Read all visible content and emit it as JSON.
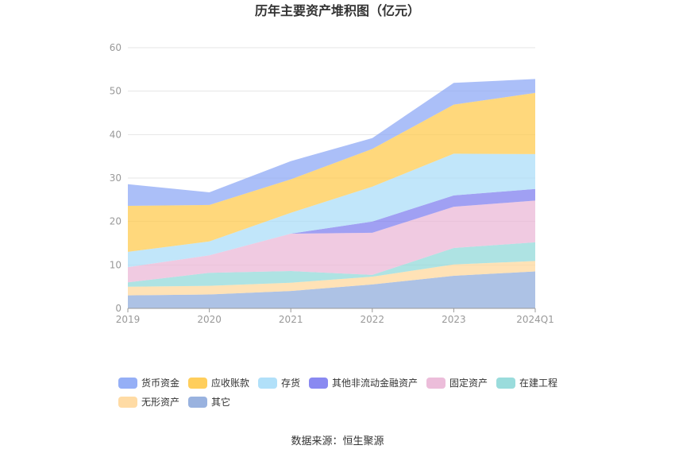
{
  "chart_data": {
    "type": "area",
    "stacked": true,
    "title": "历年主要资产堆积图（亿元）",
    "categories": [
      "2019",
      "2020",
      "2021",
      "2022",
      "2023",
      "2024Q1"
    ],
    "ylim": [
      0,
      60
    ],
    "yticks": [
      0,
      10,
      20,
      30,
      40,
      50,
      60
    ],
    "grid": true,
    "legend_position": "bottom",
    "series": [
      {
        "name": "其它",
        "color": "#8eaadb",
        "values": [
          3.0,
          3.2,
          4.0,
          5.5,
          7.5,
          8.5
        ]
      },
      {
        "name": "无形资产",
        "color": "#ffd79a",
        "values": [
          2.0,
          2.0,
          1.9,
          1.8,
          2.6,
          2.4
        ]
      },
      {
        "name": "在建工程",
        "color": "#8fd8d8",
        "values": [
          1.0,
          3.0,
          2.7,
          0.4,
          3.8,
          4.3
        ]
      },
      {
        "name": "固定资产",
        "color": "#eab6d6",
        "values": [
          3.5,
          4.0,
          8.6,
          9.7,
          9.5,
          9.6
        ]
      },
      {
        "name": "其他非流动金融资产",
        "color": "#7c7cef",
        "values": [
          0.0,
          0.0,
          0.0,
          2.6,
          2.6,
          2.7
        ]
      },
      {
        "name": "存货",
        "color": "#a9ddf8",
        "values": [
          3.5,
          3.2,
          4.8,
          8.0,
          9.6,
          8.0
        ]
      },
      {
        "name": "应收账款",
        "color": "#ffc94a",
        "values": [
          10.6,
          8.4,
          7.7,
          8.7,
          11.3,
          14.1
        ]
      },
      {
        "name": "货币资金",
        "color": "#8aa6f5",
        "values": [
          5.0,
          2.9,
          4.2,
          2.5,
          5.0,
          3.2
        ]
      }
    ],
    "legend_order": [
      "货币资金",
      "应收账款",
      "存货",
      "其他非流动金融资产",
      "固定资产",
      "在建工程",
      "无形资产",
      "其它"
    ]
  },
  "source_label": "数据来源：恒生聚源"
}
